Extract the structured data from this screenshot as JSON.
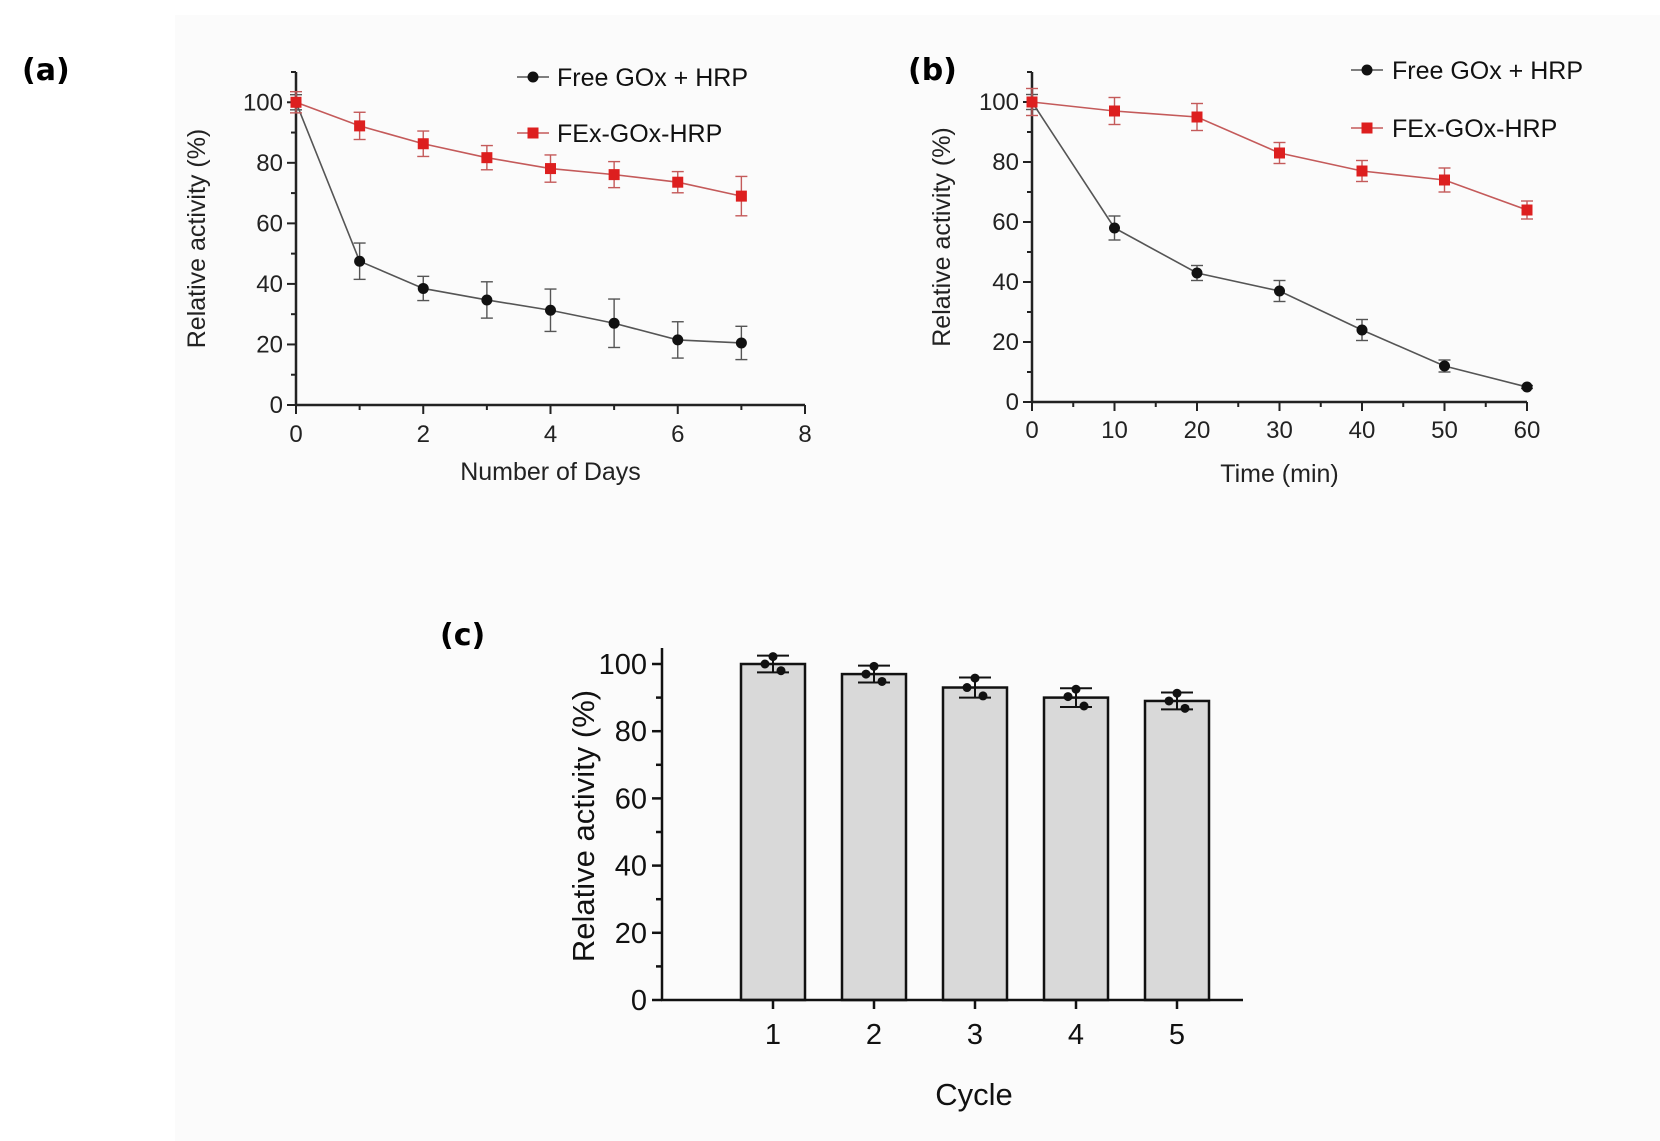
{
  "panels": {
    "a": {
      "label": "(a)"
    },
    "b": {
      "label": "(b)"
    },
    "c": {
      "label": "(c)"
    }
  },
  "colors": {
    "free": "#111111",
    "fex": "#dd1f1f",
    "bar_fill": "#d9d9d9",
    "error_fex": "#c45a5a",
    "error_free": "#555555"
  },
  "chart_data": [
    {
      "id": "a",
      "type": "line",
      "xlabel": "Number of Days",
      "ylabel": "Relative activity (%)",
      "xlim": [
        0,
        8
      ],
      "ylim": [
        0,
        110
      ],
      "xticks": [
        0,
        2,
        4,
        6,
        8
      ],
      "yticks": [
        0,
        20,
        40,
        60,
        80,
        100
      ],
      "grid": false,
      "legend": "top-right",
      "series": [
        {
          "name": "Free GOx + HRP",
          "marker": "circle",
          "x": [
            0,
            1,
            2,
            3,
            4,
            5,
            6,
            7
          ],
          "y": [
            100,
            47.5,
            38.5,
            34.7,
            31.3,
            27,
            21.5,
            20.5
          ],
          "err": [
            2.5,
            6,
            4,
            6,
            7,
            8,
            6,
            5.5
          ]
        },
        {
          "name": "FEx-GOx-HRP",
          "marker": "square",
          "x": [
            0,
            1,
            2,
            3,
            4,
            5,
            6,
            7
          ],
          "y": [
            100,
            92.2,
            86.3,
            81.7,
            78.1,
            76.1,
            73.6,
            69
          ],
          "err": [
            3.5,
            4.5,
            4.2,
            4,
            4.5,
            4.3,
            3.5,
            6.5
          ]
        }
      ]
    },
    {
      "id": "b",
      "type": "line",
      "xlabel": "Time (min)",
      "ylabel": "Relative activity (%)",
      "xlim": [
        0,
        60
      ],
      "ylim": [
        0,
        110
      ],
      "xticks": [
        0,
        10,
        20,
        30,
        40,
        50,
        60
      ],
      "yticks": [
        0,
        20,
        40,
        60,
        80,
        100
      ],
      "grid": false,
      "legend": "top-right",
      "series": [
        {
          "name": "Free GOx + HRP",
          "marker": "circle",
          "x": [
            0,
            10,
            20,
            30,
            40,
            50,
            60
          ],
          "y": [
            100,
            58,
            43,
            37,
            24,
            12,
            5
          ],
          "err": [
            2.5,
            4,
            2.5,
            3.5,
            3.5,
            2,
            0.5
          ]
        },
        {
          "name": "FEx-GOx-HRP",
          "marker": "square",
          "x": [
            0,
            10,
            20,
            30,
            40,
            50,
            60
          ],
          "y": [
            100,
            97,
            95,
            83,
            77,
            74,
            64
          ],
          "err": [
            4.5,
            4.5,
            4.5,
            3.5,
            3.5,
            4,
            3
          ]
        }
      ]
    },
    {
      "id": "c",
      "type": "bar",
      "xlabel": "Cycle",
      "ylabel": "Relative activity (%)",
      "categories": [
        "1",
        "2",
        "3",
        "4",
        "5"
      ],
      "values": [
        100,
        97,
        93,
        90,
        89
      ],
      "err": [
        2.5,
        2.5,
        3,
        2.8,
        2.5
      ],
      "points": [
        [
          102.2,
          100,
          98
        ],
        [
          99.3,
          97,
          94.8
        ],
        [
          95.8,
          93,
          90.5
        ],
        [
          92.5,
          90.3,
          87.5
        ],
        [
          91.3,
          89,
          86.8
        ]
      ],
      "ylim": [
        0,
        105
      ],
      "yticks": [
        0,
        20,
        40,
        60,
        80,
        100
      ],
      "grid": false
    }
  ]
}
